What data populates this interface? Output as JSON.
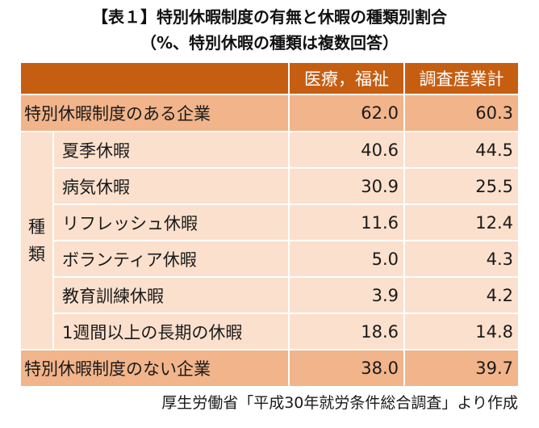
{
  "title": {
    "line1": "【表１】特別休暇制度の有無と休暇の種類別割合",
    "line2": "（%、特別休暇の種類は複数回答）"
  },
  "table": {
    "headers": [
      "",
      "医療，福祉",
      "調査産業計"
    ],
    "category_label": [
      "種",
      "類"
    ],
    "rows": [
      {
        "label": "特別休暇制度のある企業",
        "v1": "62.0",
        "v2": "60.3"
      },
      {
        "label": "夏季休暇",
        "v1": "40.6",
        "v2": "44.5"
      },
      {
        "label": "病気休暇",
        "v1": "30.9",
        "v2": "25.5"
      },
      {
        "label": "リフレッシュ休暇",
        "v1": "11.6",
        "v2": "12.4"
      },
      {
        "label": "ボランティア休暇",
        "v1": "5.0",
        "v2": "4.3"
      },
      {
        "label": "教育訓練休暇",
        "v1": "3.9",
        "v2": "4.2"
      },
      {
        "label": "1週間以上の長期の休暇",
        "v1": "18.6",
        "v2": "14.8"
      },
      {
        "label": "特別休暇制度のない企業",
        "v1": "38.0",
        "v2": "39.7"
      }
    ]
  },
  "source": "厚生労働省「平成30年就労条件総合調査」より作成",
  "colors": {
    "header": "#c65e12",
    "summary_row": "#f2b48a",
    "item_row": "#fbe0cd"
  }
}
